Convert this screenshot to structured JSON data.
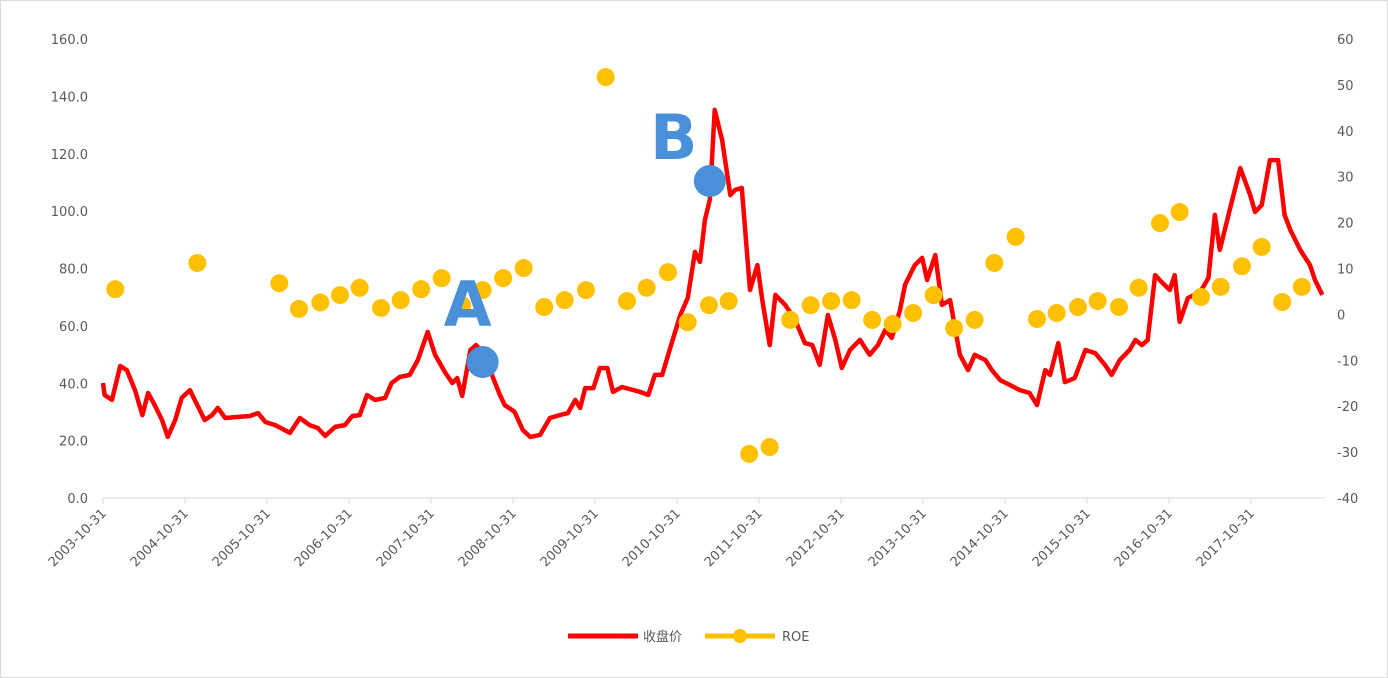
{
  "chart_data": {
    "type": "line",
    "title": "",
    "xlabel": "",
    "ylabel_left": "",
    "ylabel_right": "",
    "x_unit": "years since 2003-10-31",
    "x_range": [
      0,
      14.9
    ],
    "x_ticks": [
      "2003-10-31",
      "2004-10-31",
      "2005-10-31",
      "2006-10-31",
      "2007-10-31",
      "2008-10-31",
      "2009-10-31",
      "2010-10-31",
      "2011-10-31",
      "2012-10-31",
      "2013-10-31",
      "2014-10-31",
      "2015-10-31",
      "2016-10-31",
      "2017-10-31"
    ],
    "y_left": {
      "range": [
        0,
        160
      ],
      "ticks": [
        "0.0",
        "20.0",
        "40.0",
        "60.0",
        "80.0",
        "100.0",
        "120.0",
        "140.0",
        "160.0"
      ]
    },
    "y_right": {
      "range": [
        -40,
        60
      ],
      "ticks": [
        "-40",
        "-30",
        "-20",
        "-10",
        "0",
        "10",
        "20",
        "30",
        "40",
        "50",
        "60"
      ]
    },
    "grid": false,
    "legend_position": "bottom",
    "series": [
      {
        "name": "收盘价",
        "axis": "left",
        "kind": "line",
        "color": "#ff0000",
        "points": [
          [
            0,
            40.1
          ],
          [
            0.02,
            35.9
          ],
          [
            0.11,
            34.2
          ],
          [
            0.21,
            46.0
          ],
          [
            0.29,
            44.6
          ],
          [
            0.39,
            37.6
          ],
          [
            0.48,
            28.9
          ],
          [
            0.55,
            36.6
          ],
          [
            0.63,
            32.4
          ],
          [
            0.72,
            27.2
          ],
          [
            0.79,
            21.3
          ],
          [
            0.88,
            27.2
          ],
          [
            0.96,
            34.9
          ],
          [
            1.06,
            37.6
          ],
          [
            1.15,
            32.4
          ],
          [
            1.24,
            27.2
          ],
          [
            1.33,
            28.9
          ],
          [
            1.4,
            31.4
          ],
          [
            1.49,
            27.9
          ],
          [
            1.61,
            28.2
          ],
          [
            1.79,
            28.6
          ],
          [
            1.89,
            29.6
          ],
          [
            1.98,
            26.5
          ],
          [
            2.1,
            25.4
          ],
          [
            2.28,
            22.7
          ],
          [
            2.4,
            27.9
          ],
          [
            2.52,
            25.4
          ],
          [
            2.62,
            24.4
          ],
          [
            2.71,
            21.6
          ],
          [
            2.83,
            24.8
          ],
          [
            2.95,
            25.4
          ],
          [
            3.04,
            28.6
          ],
          [
            3.13,
            28.9
          ],
          [
            3.22,
            35.9
          ],
          [
            3.32,
            34.2
          ],
          [
            3.44,
            34.9
          ],
          [
            3.52,
            40.1
          ],
          [
            3.62,
            42.2
          ],
          [
            3.74,
            42.9
          ],
          [
            3.84,
            48.1
          ],
          [
            3.96,
            57.9
          ],
          [
            4.05,
            49.9
          ],
          [
            4.17,
            43.9
          ],
          [
            4.26,
            40.1
          ],
          [
            4.32,
            41.8
          ],
          [
            4.38,
            35.6
          ],
          [
            4.48,
            51.6
          ],
          [
            4.55,
            53.3
          ],
          [
            4.66,
            49.9
          ],
          [
            4.72,
            44.6
          ],
          [
            4.84,
            35.9
          ],
          [
            4.9,
            32.4
          ],
          [
            5.02,
            30.0
          ],
          [
            5.12,
            23.7
          ],
          [
            5.21,
            21.3
          ],
          [
            5.33,
            22.0
          ],
          [
            5.45,
            27.9
          ],
          [
            5.57,
            28.9
          ],
          [
            5.67,
            29.6
          ],
          [
            5.76,
            34.2
          ],
          [
            5.82,
            31.4
          ],
          [
            5.88,
            38.3
          ],
          [
            5.98,
            38.3
          ],
          [
            6.06,
            45.3
          ],
          [
            6.15,
            45.3
          ],
          [
            6.22,
            37.0
          ],
          [
            6.33,
            38.7
          ],
          [
            6.55,
            37.0
          ],
          [
            6.65,
            35.9
          ],
          [
            6.73,
            42.9
          ],
          [
            6.82,
            42.9
          ],
          [
            6.91,
            51.6
          ],
          [
            7.04,
            63.8
          ],
          [
            7.13,
            69.7
          ],
          [
            7.22,
            85.8
          ],
          [
            7.28,
            82.3
          ],
          [
            7.34,
            96.9
          ],
          [
            7.4,
            103.9
          ],
          [
            7.46,
            135.3
          ],
          [
            7.55,
            124.8
          ],
          [
            7.65,
            105.6
          ],
          [
            7.71,
            107.4
          ],
          [
            7.79,
            108.1
          ],
          [
            7.89,
            72.5
          ],
          [
            7.98,
            81.2
          ],
          [
            8.04,
            69.0
          ],
          [
            8.13,
            53.3
          ],
          [
            8.2,
            70.8
          ],
          [
            8.32,
            67.3
          ],
          [
            8.44,
            62.1
          ],
          [
            8.56,
            54.0
          ],
          [
            8.65,
            53.3
          ],
          [
            8.74,
            46.4
          ],
          [
            8.84,
            63.8
          ],
          [
            8.93,
            55.1
          ],
          [
            9.01,
            45.3
          ],
          [
            9.11,
            51.6
          ],
          [
            9.23,
            55.1
          ],
          [
            9.35,
            49.9
          ],
          [
            9.45,
            53.3
          ],
          [
            9.54,
            58.6
          ],
          [
            9.62,
            55.8
          ],
          [
            9.72,
            65.5
          ],
          [
            9.78,
            74.3
          ],
          [
            9.9,
            81.2
          ],
          [
            9.99,
            83.7
          ],
          [
            10.05,
            76.0
          ],
          [
            10.15,
            84.7
          ],
          [
            10.23,
            67.3
          ],
          [
            10.33,
            69.0
          ],
          [
            10.45,
            49.9
          ],
          [
            10.55,
            44.6
          ],
          [
            10.63,
            49.9
          ],
          [
            10.76,
            48.1
          ],
          [
            10.84,
            44.6
          ],
          [
            10.94,
            41.1
          ],
          [
            11.06,
            39.4
          ],
          [
            11.18,
            37.6
          ],
          [
            11.3,
            36.6
          ],
          [
            11.39,
            32.4
          ],
          [
            11.49,
            44.6
          ],
          [
            11.55,
            42.9
          ],
          [
            11.65,
            54.0
          ],
          [
            11.73,
            40.4
          ],
          [
            11.85,
            41.8
          ],
          [
            11.98,
            51.6
          ],
          [
            12.1,
            50.5
          ],
          [
            12.22,
            46.4
          ],
          [
            12.3,
            42.9
          ],
          [
            12.4,
            48.1
          ],
          [
            12.52,
            51.6
          ],
          [
            12.59,
            55.1
          ],
          [
            12.67,
            53.3
          ],
          [
            12.74,
            55.1
          ],
          [
            12.83,
            77.7
          ],
          [
            12.91,
            75.3
          ],
          [
            13.01,
            72.5
          ],
          [
            13.07,
            77.7
          ],
          [
            13.13,
            61.4
          ],
          [
            13.23,
            69.7
          ],
          [
            13.38,
            71.8
          ],
          [
            13.48,
            76.7
          ],
          [
            13.56,
            98.7
          ],
          [
            13.62,
            86.5
          ],
          [
            13.74,
            100.4
          ],
          [
            13.87,
            115.0
          ],
          [
            13.99,
            105.6
          ],
          [
            14.05,
            99.7
          ],
          [
            14.13,
            102.1
          ],
          [
            14.23,
            117.8
          ],
          [
            14.33,
            117.8
          ],
          [
            14.41,
            98.7
          ],
          [
            14.48,
            93.4
          ],
          [
            14.6,
            86.5
          ],
          [
            14.72,
            81.2
          ],
          [
            14.78,
            76.0
          ],
          [
            14.87,
            70.8
          ]
        ]
      },
      {
        "name": "ROE",
        "axis": "right",
        "kind": "scatter",
        "color": "#ffc000",
        "points": [
          [
            0.15,
            5.5
          ],
          [
            1.15,
            11.2
          ],
          [
            2.15,
            6.8
          ],
          [
            2.39,
            1.2
          ],
          [
            2.65,
            2.6
          ],
          [
            2.89,
            4.2
          ],
          [
            3.13,
            5.8
          ],
          [
            3.39,
            1.4
          ],
          [
            3.63,
            3.1
          ],
          [
            3.88,
            5.5
          ],
          [
            4.13,
            7.9
          ],
          [
            4.38,
            2.0
          ],
          [
            4.63,
            5.3
          ],
          [
            4.88,
            7.9
          ],
          [
            5.13,
            10.1
          ],
          [
            5.38,
            1.6
          ],
          [
            5.63,
            3.1
          ],
          [
            5.89,
            5.3
          ],
          [
            6.13,
            51.7
          ],
          [
            6.39,
            2.9
          ],
          [
            6.63,
            5.8
          ],
          [
            6.89,
            9.2
          ],
          [
            7.13,
            -1.7
          ],
          [
            7.39,
            2.0
          ],
          [
            7.63,
            2.9
          ],
          [
            7.88,
            -30.4
          ],
          [
            8.13,
            -28.9
          ],
          [
            8.38,
            -1.2
          ],
          [
            8.63,
            2.0
          ],
          [
            8.88,
            2.9
          ],
          [
            9.13,
            3.1
          ],
          [
            9.38,
            -1.2
          ],
          [
            9.63,
            -2.1
          ],
          [
            9.88,
            0.3
          ],
          [
            10.13,
            4.2
          ],
          [
            10.38,
            -3.0
          ],
          [
            10.63,
            -1.2
          ],
          [
            10.87,
            11.2
          ],
          [
            11.13,
            16.9
          ],
          [
            11.39,
            -1.0
          ],
          [
            11.63,
            0.3
          ],
          [
            11.89,
            1.6
          ],
          [
            12.13,
            2.9
          ],
          [
            12.39,
            1.6
          ],
          [
            12.63,
            5.8
          ],
          [
            12.89,
            19.9
          ],
          [
            13.13,
            22.3
          ],
          [
            13.39,
            3.8
          ],
          [
            13.63,
            6.0
          ],
          [
            13.89,
            10.5
          ],
          [
            14.13,
            14.7
          ],
          [
            14.38,
            2.7
          ],
          [
            14.62,
            6.0
          ]
        ]
      }
    ],
    "annotations": [
      {
        "label": "A",
        "marker_x": 4.63,
        "marker_y": 47.4,
        "color": "#4a90d9"
      },
      {
        "label": "B",
        "marker_x": 7.4,
        "marker_y": 110.5,
        "color": "#4a90d9"
      }
    ]
  }
}
